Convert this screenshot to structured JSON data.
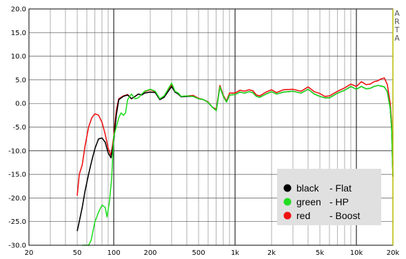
{
  "chart_data": {
    "type": "line",
    "title": "",
    "xlabel": "",
    "ylabel": "",
    "x_scale": "log",
    "xlim": [
      20,
      20000
    ],
    "ylim": [
      -30,
      20
    ],
    "grid": true,
    "y_ticks": [
      20,
      15,
      10,
      5,
      0,
      -5,
      -10,
      -15,
      -20,
      -25,
      -30
    ],
    "y_tick_labels": [
      "20.0",
      "15.0",
      "10.0",
      "5.0",
      "0.0",
      "-5.0",
      "-10.0",
      "-15.0",
      "-20.0",
      "-25.0",
      "-30.0"
    ],
    "x_ticks": [
      20,
      50,
      100,
      200,
      500,
      1000,
      2000,
      5000,
      10000,
      20000
    ],
    "x_tick_labels": [
      "20",
      "50",
      "100",
      "200",
      "500",
      "1k",
      "2k",
      "5k",
      "10k",
      "20k"
    ],
    "side_label": [
      "A",
      "R",
      "T",
      "A"
    ],
    "legend_placement": "bottom-right",
    "legend": [
      {
        "label": "black",
        "desc": "- Flat",
        "color": "#000000"
      },
      {
        "label": "green",
        "desc": "- HP",
        "color": "#22dd22"
      },
      {
        "label": "red",
        "desc": "- Boost",
        "color": "#ee1111"
      }
    ],
    "series": [
      {
        "color": "#ee1111",
        "x": [
          50,
          52,
          55,
          58,
          62,
          66,
          70,
          75,
          80,
          85,
          90,
          95,
          100,
          105,
          110,
          120,
          130,
          140,
          150,
          160,
          170,
          180,
          200,
          220,
          240,
          260,
          280,
          300,
          320,
          340,
          360,
          400,
          450,
          500,
          550,
          600,
          650,
          700,
          750,
          800,
          850,
          900,
          1000,
          1100,
          1200,
          1300,
          1400,
          1500,
          1600,
          1800,
          2000,
          2200,
          2500,
          3000,
          3500,
          4000,
          4500,
          5000,
          5500,
          6000,
          7000,
          8000,
          9000,
          10000,
          11000,
          12000,
          13000,
          14000,
          15000,
          16000,
          17000,
          18000,
          19000,
          19500,
          20000
        ],
        "y": [
          -19.5,
          -15,
          -13,
          -9,
          -5,
          -3,
          -2.2,
          -2.5,
          -4,
          -6.5,
          -9.5,
          -11,
          -7,
          -1.5,
          1,
          1.6,
          1.9,
          1.0,
          1.5,
          2.0,
          1.8,
          2.5,
          2.9,
          2.5,
          0.9,
          1.5,
          2.7,
          3.9,
          2.5,
          2.2,
          1.5,
          1.6,
          1.7,
          1.1,
          0.8,
          0.3,
          -0.8,
          -1.2,
          3.8,
          1.7,
          0.5,
          2.2,
          2.2,
          2.8,
          2.6,
          2.9,
          2.7,
          1.8,
          1.6,
          2.4,
          2.9,
          2.3,
          2.9,
          3.0,
          2.6,
          3.5,
          2.5,
          2.1,
          1.5,
          1.6,
          2.6,
          3.3,
          4.1,
          3.6,
          4.6,
          4.0,
          4.1,
          4.6,
          4.8,
          5.2,
          5.4,
          4.0,
          0.0,
          -4.0,
          -13.0
        ]
      },
      {
        "color": "#000000",
        "x": [
          50,
          52,
          55,
          58,
          62,
          66,
          70,
          75,
          80,
          85,
          90,
          95,
          100,
          105,
          110,
          120,
          130,
          140,
          150,
          160,
          170,
          180,
          200,
          220,
          240,
          260,
          280,
          300,
          320,
          340,
          360,
          400,
          450,
          500,
          550,
          600,
          650,
          700,
          750,
          800,
          850,
          900,
          1000,
          1100,
          1200,
          1300,
          1400,
          1500,
          1600,
          1800,
          2000,
          2200,
          2500,
          3000,
          3500,
          4000,
          4500,
          5000,
          5500,
          6000,
          7000,
          8000,
          9000,
          10000,
          11000,
          12000,
          13000,
          14000,
          15000,
          16000,
          17000,
          18000,
          19000,
          19500,
          20000
        ],
        "y": [
          -27,
          -25,
          -22,
          -18.5,
          -15,
          -12,
          -9.5,
          -7.5,
          -7.3,
          -8.2,
          -10.5,
          -11.5,
          -8,
          -2.5,
          0.8,
          1.5,
          1.8,
          1.0,
          1.5,
          2.0,
          1.8,
          2.2,
          2.4,
          2.3,
          0.8,
          1.3,
          2.5,
          3.6,
          2.4,
          2.0,
          1.4,
          1.5,
          1.5,
          1.0,
          0.8,
          0.2,
          -0.8,
          -1.5,
          3.5,
          1.5,
          0.3,
          1.8,
          1.9,
          2.4,
          2.2,
          2.5,
          2.3,
          1.5,
          1.3,
          2.0,
          2.5,
          2.0,
          2.4,
          2.6,
          2.2,
          3.0,
          2.0,
          1.5,
          1.2,
          1.2,
          2.2,
          2.8,
          3.6,
          3.0,
          3.6,
          3.1,
          3.2,
          3.6,
          3.8,
          3.7,
          3.5,
          2.5,
          -1.0,
          -5.0,
          -15.5
        ]
      },
      {
        "color": "#22dd22",
        "x": [
          55,
          57,
          60,
          62,
          65,
          70,
          75,
          80,
          85,
          88,
          92,
          96,
          100,
          105,
          110,
          115,
          120,
          125,
          130,
          140,
          150,
          160,
          170,
          180,
          200,
          220,
          240,
          260,
          280,
          300,
          320,
          340,
          360,
          400,
          450,
          500,
          550,
          600,
          650,
          700,
          750,
          800,
          850,
          900,
          1000,
          1100,
          1200,
          1300,
          1400,
          1500,
          1600,
          1800,
          2000,
          2200,
          2500,
          3000,
          3500,
          4000,
          4500,
          5000,
          5500,
          6000,
          7000,
          8000,
          9000,
          10000,
          11000,
          12000,
          13000,
          14000,
          15000,
          16000,
          17000,
          18000,
          19000,
          19500,
          20000
        ],
        "y": [
          -30,
          -33,
          -34,
          -32,
          -29,
          -25,
          -23,
          -21.5,
          -22,
          -24,
          -21,
          -16,
          -7,
          -5,
          -3,
          -2,
          -2.5,
          -2.0,
          0.8,
          2.0,
          1.0,
          1.2,
          2.0,
          2.6,
          3.0,
          2.6,
          1.0,
          1.6,
          3.0,
          4.3,
          2.6,
          2.2,
          1.5,
          1.6,
          1.5,
          1.0,
          0.8,
          0.2,
          -0.8,
          -1.5,
          3.5,
          1.5,
          0.3,
          1.8,
          1.9,
          2.4,
          2.2,
          2.5,
          2.3,
          1.5,
          1.3,
          2.0,
          2.5,
          2.0,
          2.4,
          2.6,
          2.2,
          3.0,
          2.0,
          1.5,
          1.2,
          1.2,
          2.2,
          2.8,
          3.6,
          3.0,
          3.6,
          3.1,
          3.2,
          3.6,
          3.8,
          3.7,
          3.5,
          2.5,
          -1.0,
          -5.0,
          -15.5
        ]
      }
    ]
  }
}
